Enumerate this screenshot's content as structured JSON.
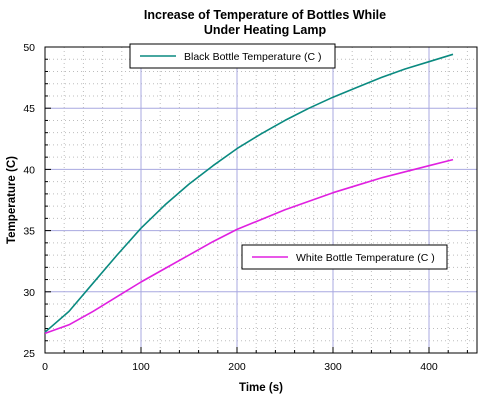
{
  "chart_data": {
    "type": "line",
    "title": [
      "Increase of Temperature of Bottles While",
      "Under Heating Lamp"
    ],
    "xlabel": "Time (s)",
    "ylabel": "Temperature (C)",
    "xlim": [
      0,
      450
    ],
    "ylim": [
      25,
      50
    ],
    "x_ticks": [
      0,
      100,
      200,
      300,
      400
    ],
    "y_ticks": [
      25,
      30,
      35,
      40,
      45,
      50
    ],
    "grid": true,
    "series": [
      {
        "name": "Black Bottle Temperature (C )",
        "color": "#0a8a80",
        "x": [
          0,
          25,
          50,
          75,
          100,
          125,
          150,
          175,
          200,
          225,
          250,
          275,
          300,
          325,
          350,
          375,
          400,
          425
        ],
        "y": [
          26.7,
          28.4,
          30.7,
          33.0,
          35.2,
          37.1,
          38.8,
          40.3,
          41.7,
          42.9,
          44.0,
          45.0,
          45.9,
          46.7,
          47.5,
          48.2,
          48.8,
          49.4
        ]
      },
      {
        "name": "White Bottle Temperature (C )",
        "color": "#e020e0",
        "x": [
          0,
          25,
          50,
          75,
          100,
          125,
          150,
          175,
          200,
          225,
          250,
          275,
          300,
          325,
          350,
          375,
          400,
          425
        ],
        "y": [
          26.6,
          27.3,
          28.4,
          29.6,
          30.8,
          31.9,
          33.0,
          34.1,
          35.1,
          35.9,
          36.7,
          37.4,
          38.1,
          38.7,
          39.3,
          39.8,
          40.3,
          40.8
        ]
      }
    ]
  }
}
